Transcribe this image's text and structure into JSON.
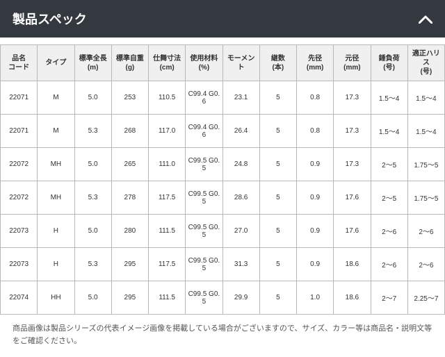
{
  "header": {
    "title": "製品スペック"
  },
  "table": {
    "columns": [
      "品名\nコード",
      "タイプ",
      "標準全長\n(m)",
      "標準自重\n(g)",
      "仕舞寸法\n(cm)",
      "使用材料\n(%)",
      "モーメント",
      "継数\n(本)",
      "先径\n(mm)",
      "元径\n(mm)",
      "錘負荷\n(号)",
      "適正ハリス\n(号)"
    ],
    "rows": [
      [
        "22071",
        "M",
        "5.0",
        "253",
        "110.5",
        "C99.4 G0.6",
        "23.1",
        "5",
        "0.8",
        "17.3",
        "1.5～4",
        "1.5～4"
      ],
      [
        "22071",
        "M",
        "5.3",
        "268",
        "117.0",
        "C99.4 G0.6",
        "26.4",
        "5",
        "0.8",
        "17.3",
        "1.5～4",
        "1.5～4"
      ],
      [
        "22072",
        "MH",
        "5.0",
        "265",
        "111.0",
        "C99.5 G0.5",
        "24.8",
        "5",
        "0.9",
        "17.3",
        "2～5",
        "1.75～5"
      ],
      [
        "22072",
        "MH",
        "5.3",
        "278",
        "117.5",
        "C99.5 G0.5",
        "28.6",
        "5",
        "0.9",
        "17.6",
        "2～5",
        "1.75～5"
      ],
      [
        "22073",
        "H",
        "5.0",
        "280",
        "111.5",
        "C99.5 G0.5",
        "27.0",
        "5",
        "0.9",
        "17.6",
        "2～6",
        "2～6"
      ],
      [
        "22073",
        "H",
        "5.3",
        "295",
        "117.5",
        "C99.5 G0.5",
        "31.3",
        "5",
        "0.9",
        "18.6",
        "2～6",
        "2～6"
      ],
      [
        "22074",
        "HH",
        "5.0",
        "295",
        "111.5",
        "C99.5 G0.5",
        "29.9",
        "5",
        "1.0",
        "18.6",
        "2～7",
        "2.25～7"
      ]
    ]
  },
  "note": {
    "text": "商品画像は製品シリーズの代表イメージ画像を掲載している場合がございますので、サイズ、カラー等は商品名・説明文等をご確認ください。"
  },
  "colors": {
    "header_bg": "#33393e",
    "header_fg": "#ffffff",
    "th_bg": "#f0f0f0",
    "border": "#b8b8b8",
    "text": "#333333",
    "note_text": "#555555"
  }
}
